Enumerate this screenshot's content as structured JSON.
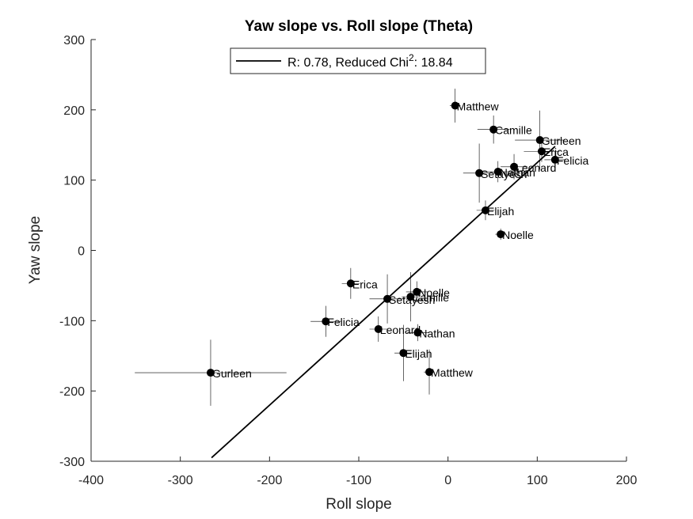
{
  "chart_data": {
    "type": "scatter",
    "title": "Yaw slope vs. Roll slope (Theta)",
    "xlabel": "Roll slope",
    "ylabel": "Yaw slope",
    "xlim": [
      -400,
      200
    ],
    "ylim": [
      -300,
      300
    ],
    "xticks": [
      "-400",
      "-300",
      "-200",
      "-100",
      "0",
      "100",
      "200"
    ],
    "yticks": [
      "-300",
      "-200",
      "-100",
      "0",
      "100",
      "200",
      "300"
    ],
    "grid": false,
    "legend": {
      "position": "top-center",
      "prefix": "R: 0.78, Reduced Chi",
      "superscript": "2",
      "suffix": ": 18.84"
    },
    "fit_line": {
      "x": [
        -265,
        120
      ],
      "y": [
        -295,
        148
      ]
    },
    "points": [
      {
        "name": "Matthew",
        "x": 8,
        "y": 206,
        "xerr": 6,
        "yerr": 24
      },
      {
        "name": "Camille",
        "x": 51,
        "y": 172,
        "xerr": 18,
        "yerr": 20
      },
      {
        "name": "Gurleen",
        "x": 103,
        "y": 157,
        "xerr": 28,
        "yerr": 42
      },
      {
        "name": "Erica",
        "x": 105,
        "y": 141,
        "xerr": 20,
        "yerr": 15
      },
      {
        "name": "Felicia",
        "x": 120,
        "y": 129,
        "xerr": 12,
        "yerr": 12
      },
      {
        "name": "Leonard",
        "x": 74,
        "y": 119,
        "xerr": 15,
        "yerr": 18
      },
      {
        "name": "Nathan",
        "x": 56,
        "y": 112,
        "xerr": 18,
        "yerr": 15
      },
      {
        "name": "Setayesh",
        "x": 35,
        "y": 110,
        "xerr": 18,
        "yerr": 42
      },
      {
        "name": "Elijah",
        "x": 42,
        "y": 57,
        "xerr": 10,
        "yerr": 14
      },
      {
        "name": "Noelle",
        "x": 59,
        "y": 23,
        "xerr": 6,
        "yerr": 8
      },
      {
        "name": "Erica",
        "x": -109,
        "y": -47,
        "xerr": 10,
        "yerr": 22
      },
      {
        "name": "Noelle",
        "x": -35,
        "y": -59,
        "xerr": 12,
        "yerr": 15
      },
      {
        "name": "Camille",
        "x": -42,
        "y": -66,
        "xerr": 10,
        "yerr": 35
      },
      {
        "name": "Setayesh",
        "x": -68,
        "y": -69,
        "xerr": 20,
        "yerr": 35
      },
      {
        "name": "Felicia",
        "x": -137,
        "y": -101,
        "xerr": 17,
        "yerr": 22
      },
      {
        "name": "Leonard",
        "x": -78,
        "y": -112,
        "xerr": 10,
        "yerr": 18
      },
      {
        "name": "Nathan",
        "x": -34,
        "y": -117,
        "xerr": 12,
        "yerr": 12
      },
      {
        "name": "Elijah",
        "x": -50,
        "y": -146,
        "xerr": 10,
        "yerr": 40
      },
      {
        "name": "Matthew",
        "x": -21,
        "y": -173,
        "xerr": 6,
        "yerr": 32
      },
      {
        "name": "Gurleen",
        "x": -266,
        "y": -174,
        "xerr": 85,
        "yerr": 47
      }
    ]
  }
}
